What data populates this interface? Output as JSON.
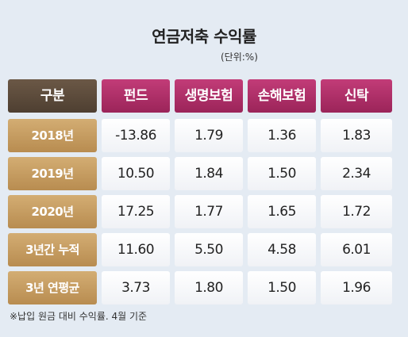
{
  "title": "연금저축 수익률",
  "unit": "(단위:%)",
  "table": {
    "header": [
      "구분",
      "펀드",
      "생명보험",
      "손해보험",
      "신탁"
    ],
    "rows": [
      [
        "2018년",
        "-13.86",
        "1.79",
        "1.36",
        "1.83"
      ],
      [
        "2019년",
        "10.50",
        "1.84",
        "1.50",
        "2.34"
      ],
      [
        "2020년",
        "17.25",
        "1.77",
        "1.65",
        "1.72"
      ],
      [
        "3년간 누적",
        "11.60",
        "5.50",
        "4.58",
        "6.01"
      ],
      [
        "3년 연평균",
        "3.73",
        "1.80",
        "1.50",
        "1.96"
      ]
    ]
  },
  "note": "※납입 원금 대비 수익률. 4월 기준"
}
